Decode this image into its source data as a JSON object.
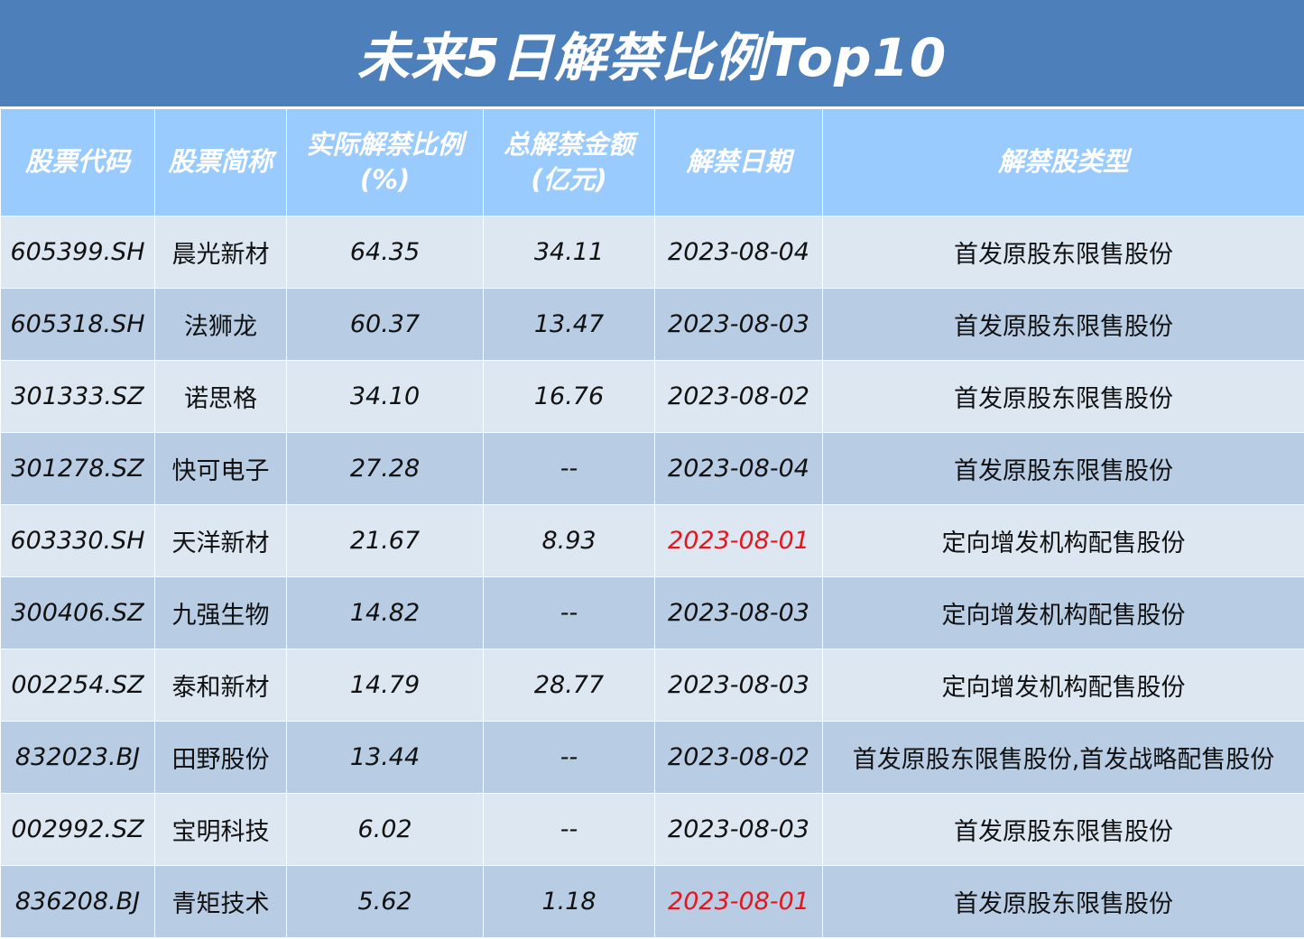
{
  "title": "未来5日解禁比例Top10",
  "headers": {
    "code": "股票代码",
    "name": "股票简称",
    "ratio": "实际解禁比例",
    "ratio_unit": "(%)",
    "amount": "总解禁金额",
    "amount_unit": "(亿元)",
    "date": "解禁日期",
    "type": "解禁股类型"
  },
  "highlight_color": "#e8141c",
  "rows": [
    {
      "code": "605399.SH",
      "name": "晨光新材",
      "ratio": "64.35",
      "amount": "34.11",
      "date": "2023-08-04",
      "type": "首发原股东限售股份",
      "date_highlight": false
    },
    {
      "code": "605318.SH",
      "name": "法狮龙",
      "ratio": "60.37",
      "amount": "13.47",
      "date": "2023-08-03",
      "type": "首发原股东限售股份",
      "date_highlight": false
    },
    {
      "code": "301333.SZ",
      "name": "诺思格",
      "ratio": "34.10",
      "amount": "16.76",
      "date": "2023-08-02",
      "type": "首发原股东限售股份",
      "date_highlight": false
    },
    {
      "code": "301278.SZ",
      "name": "快可电子",
      "ratio": "27.28",
      "amount": "--",
      "date": "2023-08-04",
      "type": "首发原股东限售股份",
      "date_highlight": false
    },
    {
      "code": "603330.SH",
      "name": "天洋新材",
      "ratio": "21.67",
      "amount": "8.93",
      "date": "2023-08-01",
      "type": "定向增发机构配售股份",
      "date_highlight": true
    },
    {
      "code": "300406.SZ",
      "name": "九强生物",
      "ratio": "14.82",
      "amount": "--",
      "date": "2023-08-03",
      "type": "定向增发机构配售股份",
      "date_highlight": false
    },
    {
      "code": "002254.SZ",
      "name": "泰和新材",
      "ratio": "14.79",
      "amount": "28.77",
      "date": "2023-08-03",
      "type": "定向增发机构配售股份",
      "date_highlight": false
    },
    {
      "code": "832023.BJ",
      "name": "田野股份",
      "ratio": "13.44",
      "amount": "--",
      "date": "2023-08-02",
      "type": "首发原股东限售股份,首发战略配售股份",
      "date_highlight": false
    },
    {
      "code": "002992.SZ",
      "name": "宝明科技",
      "ratio": "6.02",
      "amount": "--",
      "date": "2023-08-03",
      "type": "首发原股东限售股份",
      "date_highlight": false
    },
    {
      "code": "836208.BJ",
      "name": "青矩技术",
      "ratio": "5.62",
      "amount": "1.18",
      "date": "2023-08-01",
      "type": "首发原股东限售股份",
      "date_highlight": true
    }
  ]
}
